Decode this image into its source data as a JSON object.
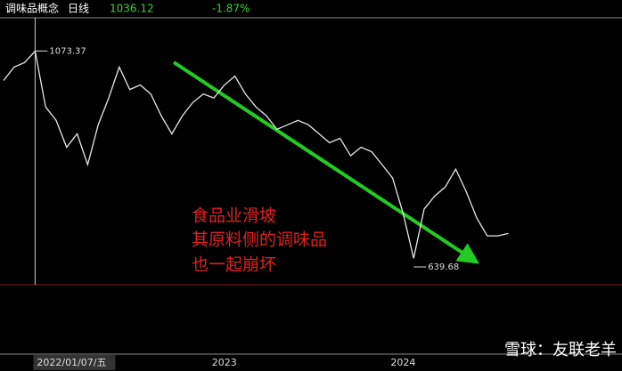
{
  "chart_data": {
    "type": "line",
    "title": "调味品概念",
    "period": "日线",
    "last_price": "1036.12",
    "change": "-1.87%",
    "high_label": 1073.37,
    "low_label": 639.68,
    "annotation": [
      "食品业滑坡",
      "其原料侧的调味品",
      "也一起崩坏"
    ],
    "watermark": "雪球：友联老羊",
    "categories": [
      null,
      null,
      null,
      "2022/01/07/五",
      null,
      null,
      null,
      null,
      null,
      null,
      null,
      null,
      null,
      null,
      null,
      null,
      null,
      null,
      null,
      null,
      null,
      "2023",
      null,
      null,
      null,
      null,
      null,
      null,
      null,
      null,
      null,
      null,
      null,
      null,
      null,
      null,
      null,
      null,
      "2024",
      null,
      null,
      null,
      null,
      null,
      null,
      null,
      null,
      null,
      null
    ],
    "series": [
      {
        "color": "#e8e8e8",
        "values": [
          1014,
          1041,
          1050,
          1073,
          961,
          934,
          880,
          907,
          845,
          925,
          979,
          1041,
          996,
          1005,
          987,
          943,
          907,
          943,
          970,
          987,
          979,
          1005,
          1023,
          987,
          961,
          943,
          916,
          925,
          934,
          925,
          907,
          889,
          898,
          863,
          880,
          871,
          845,
          818,
          747,
          657,
          756,
          782,
          800,
          836,
          791,
          738,
          702,
          702,
          707
        ]
      }
    ],
    "ylim": [
      604,
      1140
    ]
  }
}
